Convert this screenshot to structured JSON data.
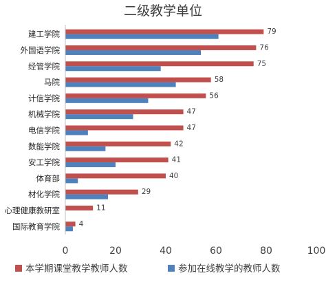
{
  "chart_data": {
    "type": "bar",
    "orientation": "horizontal",
    "title": "二级教学单位",
    "categories": [
      "建工学院",
      "外国语学院",
      "经管学院",
      "马院",
      "计信学院",
      "机械学院",
      "电信学院",
      "数能学院",
      "安工学院",
      "体育部",
      "材化学院",
      "心理健康教研室",
      "国际教育学院"
    ],
    "series": [
      {
        "name": "本学期课堂教学教师人数",
        "color": "#C0504D",
        "values": [
          79,
          76,
          75,
          58,
          56,
          47,
          47,
          42,
          41,
          40,
          29,
          11,
          4
        ]
      },
      {
        "name": "参加在线教学的教师人数",
        "color": "#4F81BD",
        "values": [
          61,
          54,
          38,
          44,
          33,
          27,
          9,
          16,
          20,
          5,
          17,
          0,
          3
        ]
      }
    ],
    "data_labels_series": 0,
    "xlim": [
      0,
      100
    ],
    "xticks": [
      0,
      20,
      40,
      60,
      80,
      100
    ],
    "grid": false,
    "legend_position": "bottom"
  }
}
